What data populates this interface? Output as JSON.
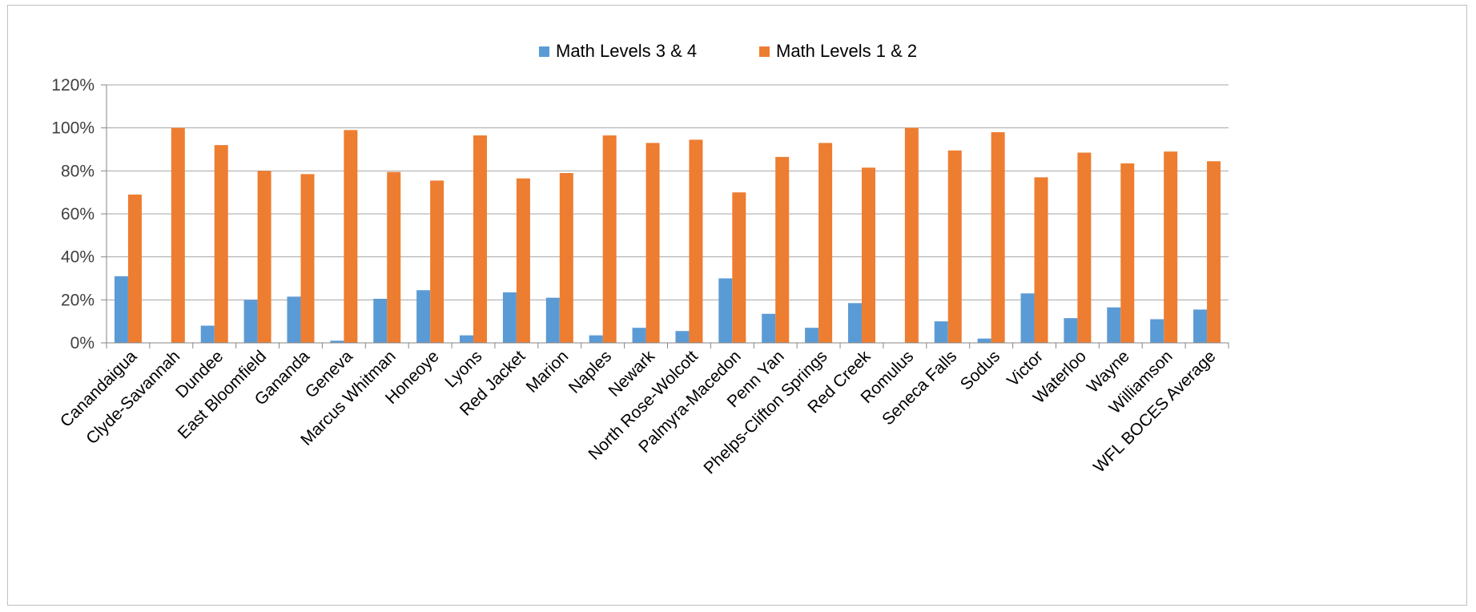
{
  "chart_data": {
    "type": "bar",
    "title": "",
    "xlabel": "",
    "ylabel": "",
    "ylim": [
      0,
      1.2
    ],
    "y_ticks": [
      0,
      0.2,
      0.4,
      0.6,
      0.8,
      1.0,
      1.2
    ],
    "y_tick_labels": [
      "0%",
      "20%",
      "40%",
      "60%",
      "80%",
      "100%",
      "120%"
    ],
    "grid": true,
    "legend_position": "top-center",
    "categories": [
      "Canandaigua",
      "Clyde-Savannah",
      "Dundee",
      "East Bloomfield",
      "Gananda",
      "Geneva",
      "Marcus Whitman",
      "Honeoye",
      "Lyons",
      "Red Jacket",
      "Marion",
      "Naples",
      "Newark",
      "North Rose-Wolcott",
      "Palmyra-Macedon",
      "Penn Yan",
      "Phelps-Clifton Springs",
      "Red Creek",
      "Romulus",
      "Seneca Falls",
      "Sodus",
      "Victor",
      "Waterloo",
      "Wayne",
      "Williamson",
      "WFL BOCES Average"
    ],
    "series": [
      {
        "name": "Math Levels 3 & 4",
        "color": "#5b9bd5",
        "values": [
          0.31,
          0.0,
          0.08,
          0.2,
          0.215,
          0.01,
          0.205,
          0.245,
          0.035,
          0.235,
          0.21,
          0.035,
          0.07,
          0.055,
          0.3,
          0.135,
          0.07,
          0.185,
          0.0,
          0.1,
          0.02,
          0.23,
          0.115,
          0.165,
          0.11,
          0.155
        ]
      },
      {
        "name": "Math Levels 1 & 2",
        "color": "#ed7d31",
        "values": [
          0.69,
          1.0,
          0.92,
          0.8,
          0.785,
          0.99,
          0.795,
          0.755,
          0.965,
          0.765,
          0.79,
          0.965,
          0.93,
          0.945,
          0.7,
          0.865,
          0.93,
          0.815,
          1.0,
          0.895,
          0.98,
          0.77,
          0.885,
          0.835,
          0.89,
          0.845
        ]
      }
    ]
  }
}
